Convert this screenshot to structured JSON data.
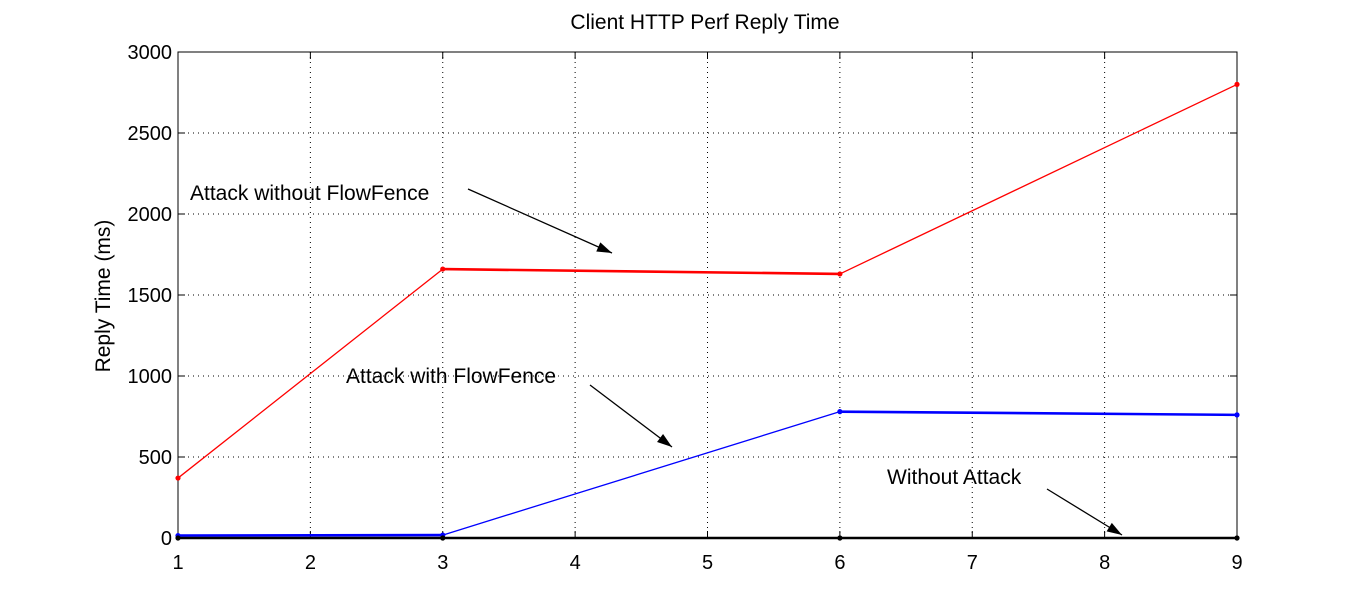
{
  "chart_data": {
    "type": "line",
    "title": "Client HTTP Perf Reply Time",
    "xlabel": "",
    "ylabel": "Reply Time (ms)",
    "xlim": [
      1,
      9
    ],
    "ylim": [
      0,
      3000
    ],
    "xticks": [
      1,
      2,
      3,
      4,
      5,
      6,
      7,
      8,
      9
    ],
    "yticks": [
      0,
      500,
      1000,
      1500,
      2000,
      2500,
      3000
    ],
    "grid": true,
    "x": [
      1,
      3,
      6,
      9
    ],
    "series": [
      {
        "key": "attack_without",
        "color": "#ff0000",
        "values": [
          370,
          1660,
          1630,
          2800
        ]
      },
      {
        "key": "attack_with",
        "color": "#0000ff",
        "values": [
          15,
          18,
          780,
          760
        ]
      },
      {
        "key": "without_attack",
        "color": "#000000",
        "values": [
          0,
          0,
          0,
          0
        ]
      }
    ],
    "annotations": [
      {
        "text": "Attack without FlowFence",
        "target_series": "attack_without",
        "target_x": 4.3
      },
      {
        "text": "Attack with FlowFence",
        "target_series": "attack_with",
        "target_x": 4.75
      },
      {
        "text": "Without Attack",
        "target_series": "without_attack",
        "target_x": 8.15
      }
    ]
  }
}
